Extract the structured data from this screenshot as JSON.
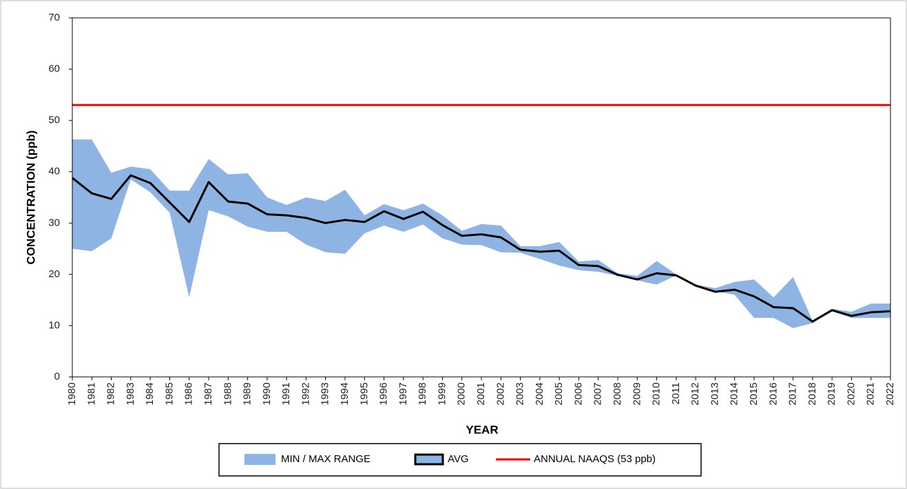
{
  "chart_data": {
    "type": "line",
    "y_label": "CONCENTRATION (ppb)",
    "x_label": "YEAR",
    "x": [
      1980,
      1981,
      1982,
      1983,
      1984,
      1985,
      1986,
      1987,
      1988,
      1989,
      1990,
      1991,
      1992,
      1993,
      1994,
      1995,
      1996,
      1997,
      1998,
      1999,
      2000,
      2001,
      2002,
      2003,
      2004,
      2005,
      2006,
      2007,
      2008,
      2009,
      2010,
      2011,
      2012,
      2013,
      2014,
      2015,
      2016,
      2017,
      2018,
      2019,
      2020,
      2021,
      2022
    ],
    "xlim": [
      1980,
      2022
    ],
    "ylim": [
      0,
      70
    ],
    "yticks": [
      0,
      10,
      20,
      30,
      40,
      50,
      60,
      70
    ],
    "series": [
      {
        "name": "MIN / MAX RANGE",
        "type": "range",
        "color": "#8eb4e3",
        "max": [
          46.3,
          46.3,
          39.8,
          41.0,
          40.5,
          36.3,
          36.3,
          42.5,
          39.5,
          39.7,
          35.0,
          33.5,
          35.0,
          34.3,
          36.5,
          31.5,
          33.7,
          32.5,
          33.8,
          31.5,
          28.5,
          29.8,
          29.5,
          25.5,
          25.5,
          26.3,
          22.5,
          22.8,
          20.2,
          19.7,
          22.6,
          20.0,
          18.0,
          17.3,
          18.5,
          19.0,
          15.5,
          19.5,
          11.0,
          13.3,
          12.7,
          14.3,
          14.3
        ],
        "min": [
          25.0,
          24.5,
          27.0,
          38.5,
          36.0,
          32.0,
          15.5,
          32.5,
          31.3,
          29.3,
          28.3,
          28.3,
          25.8,
          24.3,
          24.0,
          28.0,
          29.5,
          28.3,
          29.7,
          27.0,
          25.8,
          25.7,
          24.3,
          24.2,
          23.0,
          21.7,
          20.8,
          20.5,
          19.7,
          18.8,
          18.0,
          19.8,
          17.8,
          16.7,
          16.0,
          11.5,
          11.5,
          9.5,
          10.5,
          12.8,
          11.5,
          11.5,
          11.5
        ]
      },
      {
        "name": "AVG",
        "type": "line",
        "color": "#000000",
        "values": [
          38.8,
          35.8,
          34.7,
          39.3,
          37.8,
          34.0,
          30.2,
          38.0,
          34.2,
          33.8,
          31.7,
          31.5,
          31.0,
          30.0,
          30.6,
          30.2,
          32.3,
          30.8,
          32.2,
          29.6,
          27.5,
          27.8,
          27.2,
          24.8,
          24.4,
          24.6,
          21.8,
          21.6,
          19.9,
          19.0,
          20.2,
          19.8,
          17.8,
          16.6,
          17.0,
          15.7,
          13.6,
          13.4,
          10.8,
          13.0,
          11.9,
          12.6,
          12.8
        ]
      },
      {
        "name": "ANNUAL NAAQS (53 ppb)",
        "type": "hline",
        "color": "#ff0000",
        "value": 53
      }
    ]
  }
}
